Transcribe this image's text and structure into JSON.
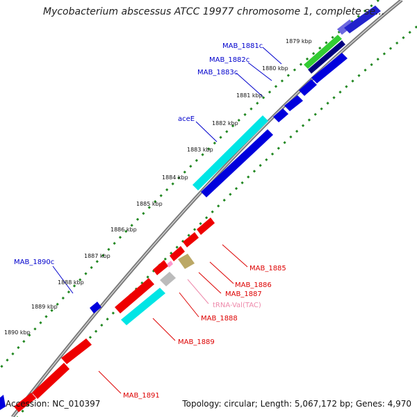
{
  "title": "Mycobacterium abscessus ATCC 19977 chromosome 1, complete se...",
  "footer": {
    "accession": "Accession: NC_010397",
    "summary": "Topology: circular; Length: 5,067,172 bp; Genes: 4,970"
  },
  "colors": {
    "cds_forward": "#0000dd",
    "cds_reverse": "#ee0000",
    "highlight_cyan": "#00e5e5",
    "trna": "#ff99cc",
    "other_grey": "#bbbbbb",
    "olive": "#bba866",
    "green": "#33cc33",
    "navy": "#000080",
    "tick_green": "#228822",
    "label_blue": "#0000cc",
    "label_red": "#dd0000",
    "label_pink": "#ee88aa"
  },
  "kbp_ticks": [
    "1879 kbp",
    "1880 kbp",
    "1881 kbp",
    "1882 kbp",
    "1883 kbp",
    "1884 kbp",
    "1885 kbp",
    "1886 kbp",
    "1887 kbp",
    "1888 kbp",
    "1889 kbp",
    "1890 kbp"
  ],
  "blue_gene_labels": [
    "MAB_1881c",
    "MAB_1882c",
    "MAB_1883c",
    "aceE",
    "MAB_1890c"
  ],
  "red_gene_labels": [
    "MAB_1885",
    "MAB_1886",
    "MAB_1887",
    "tRNA-Val(TAC)",
    "MAB_1888",
    "MAB_1889",
    "MAB_1891"
  ]
}
